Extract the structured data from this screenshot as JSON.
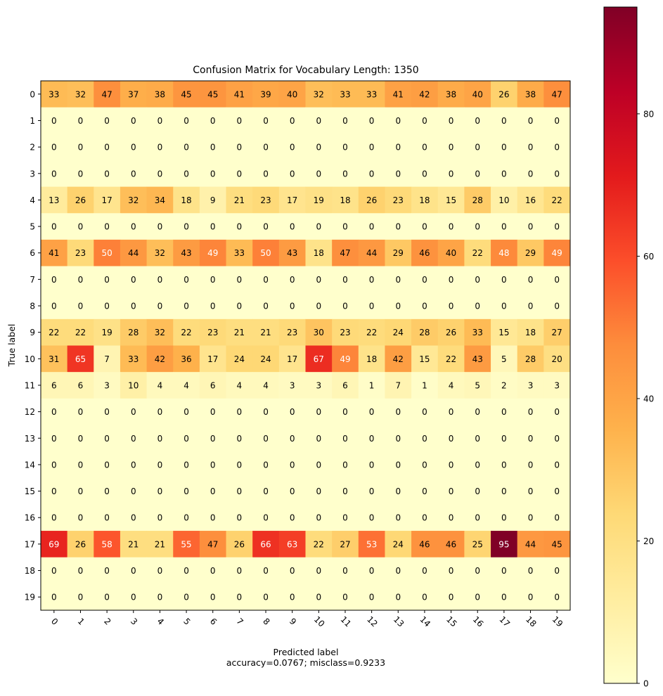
{
  "chart_data": {
    "type": "heatmap",
    "title": "Confusion Matrix for Vocabulary Length: 1350",
    "xlabel": "Predicted label",
    "xlabel_note": "accuracy=0.0767; misclass=0.9233",
    "ylabel": "True label",
    "x_categories": [
      "0",
      "1",
      "2",
      "3",
      "4",
      "5",
      "6",
      "7",
      "8",
      "9",
      "10",
      "11",
      "12",
      "13",
      "14",
      "15",
      "16",
      "17",
      "18",
      "19"
    ],
    "y_categories": [
      "0",
      "1",
      "2",
      "3",
      "4",
      "5",
      "6",
      "7",
      "8",
      "9",
      "10",
      "11",
      "12",
      "13",
      "14",
      "15",
      "16",
      "17",
      "18",
      "19"
    ],
    "values": [
      [
        33,
        32,
        47,
        37,
        38,
        45,
        45,
        41,
        39,
        40,
        32,
        33,
        33,
        41,
        42,
        38,
        40,
        26,
        38,
        47
      ],
      [
        0,
        0,
        0,
        0,
        0,
        0,
        0,
        0,
        0,
        0,
        0,
        0,
        0,
        0,
        0,
        0,
        0,
        0,
        0,
        0
      ],
      [
        0,
        0,
        0,
        0,
        0,
        0,
        0,
        0,
        0,
        0,
        0,
        0,
        0,
        0,
        0,
        0,
        0,
        0,
        0,
        0
      ],
      [
        0,
        0,
        0,
        0,
        0,
        0,
        0,
        0,
        0,
        0,
        0,
        0,
        0,
        0,
        0,
        0,
        0,
        0,
        0,
        0
      ],
      [
        13,
        26,
        17,
        32,
        34,
        18,
        9,
        21,
        23,
        17,
        19,
        18,
        26,
        23,
        18,
        15,
        28,
        10,
        16,
        22
      ],
      [
        0,
        0,
        0,
        0,
        0,
        0,
        0,
        0,
        0,
        0,
        0,
        0,
        0,
        0,
        0,
        0,
        0,
        0,
        0,
        0
      ],
      [
        41,
        23,
        50,
        44,
        32,
        43,
        49,
        33,
        50,
        43,
        18,
        47,
        44,
        29,
        46,
        40,
        22,
        48,
        29,
        49
      ],
      [
        0,
        0,
        0,
        0,
        0,
        0,
        0,
        0,
        0,
        0,
        0,
        0,
        0,
        0,
        0,
        0,
        0,
        0,
        0,
        0
      ],
      [
        0,
        0,
        0,
        0,
        0,
        0,
        0,
        0,
        0,
        0,
        0,
        0,
        0,
        0,
        0,
        0,
        0,
        0,
        0,
        0
      ],
      [
        22,
        22,
        19,
        28,
        32,
        22,
        23,
        21,
        21,
        23,
        30,
        23,
        22,
        24,
        28,
        26,
        33,
        15,
        18,
        27
      ],
      [
        31,
        65,
        7,
        33,
        42,
        36,
        17,
        24,
        24,
        17,
        67,
        49,
        18,
        42,
        15,
        22,
        43,
        5,
        28,
        20
      ],
      [
        6,
        6,
        3,
        10,
        4,
        4,
        6,
        4,
        4,
        3,
        3,
        6,
        1,
        7,
        1,
        4,
        5,
        2,
        3,
        3
      ],
      [
        0,
        0,
        0,
        0,
        0,
        0,
        0,
        0,
        0,
        0,
        0,
        0,
        0,
        0,
        0,
        0,
        0,
        0,
        0,
        0
      ],
      [
        0,
        0,
        0,
        0,
        0,
        0,
        0,
        0,
        0,
        0,
        0,
        0,
        0,
        0,
        0,
        0,
        0,
        0,
        0,
        0
      ],
      [
        0,
        0,
        0,
        0,
        0,
        0,
        0,
        0,
        0,
        0,
        0,
        0,
        0,
        0,
        0,
        0,
        0,
        0,
        0,
        0
      ],
      [
        0,
        0,
        0,
        0,
        0,
        0,
        0,
        0,
        0,
        0,
        0,
        0,
        0,
        0,
        0,
        0,
        0,
        0,
        0,
        0
      ],
      [
        0,
        0,
        0,
        0,
        0,
        0,
        0,
        0,
        0,
        0,
        0,
        0,
        0,
        0,
        0,
        0,
        0,
        0,
        0,
        0
      ],
      [
        69,
        26,
        58,
        21,
        21,
        55,
        47,
        26,
        66,
        63,
        22,
        27,
        53,
        24,
        46,
        46,
        25,
        95,
        44,
        45
      ],
      [
        0,
        0,
        0,
        0,
        0,
        0,
        0,
        0,
        0,
        0,
        0,
        0,
        0,
        0,
        0,
        0,
        0,
        0,
        0,
        0
      ],
      [
        0,
        0,
        0,
        0,
        0,
        0,
        0,
        0,
        0,
        0,
        0,
        0,
        0,
        0,
        0,
        0,
        0,
        0,
        0,
        0
      ]
    ],
    "colormap": "YlOrRd",
    "colormap_stops": [
      "#ffffcc",
      "#ffeda0",
      "#fed976",
      "#feb24c",
      "#fd8d3c",
      "#fc4e2a",
      "#e31a1c",
      "#bd0026",
      "#800026"
    ],
    "vmin": 0,
    "vmax": 95,
    "colorbar_ticks": [
      0,
      20,
      40,
      60,
      80
    ],
    "grid": false
  }
}
